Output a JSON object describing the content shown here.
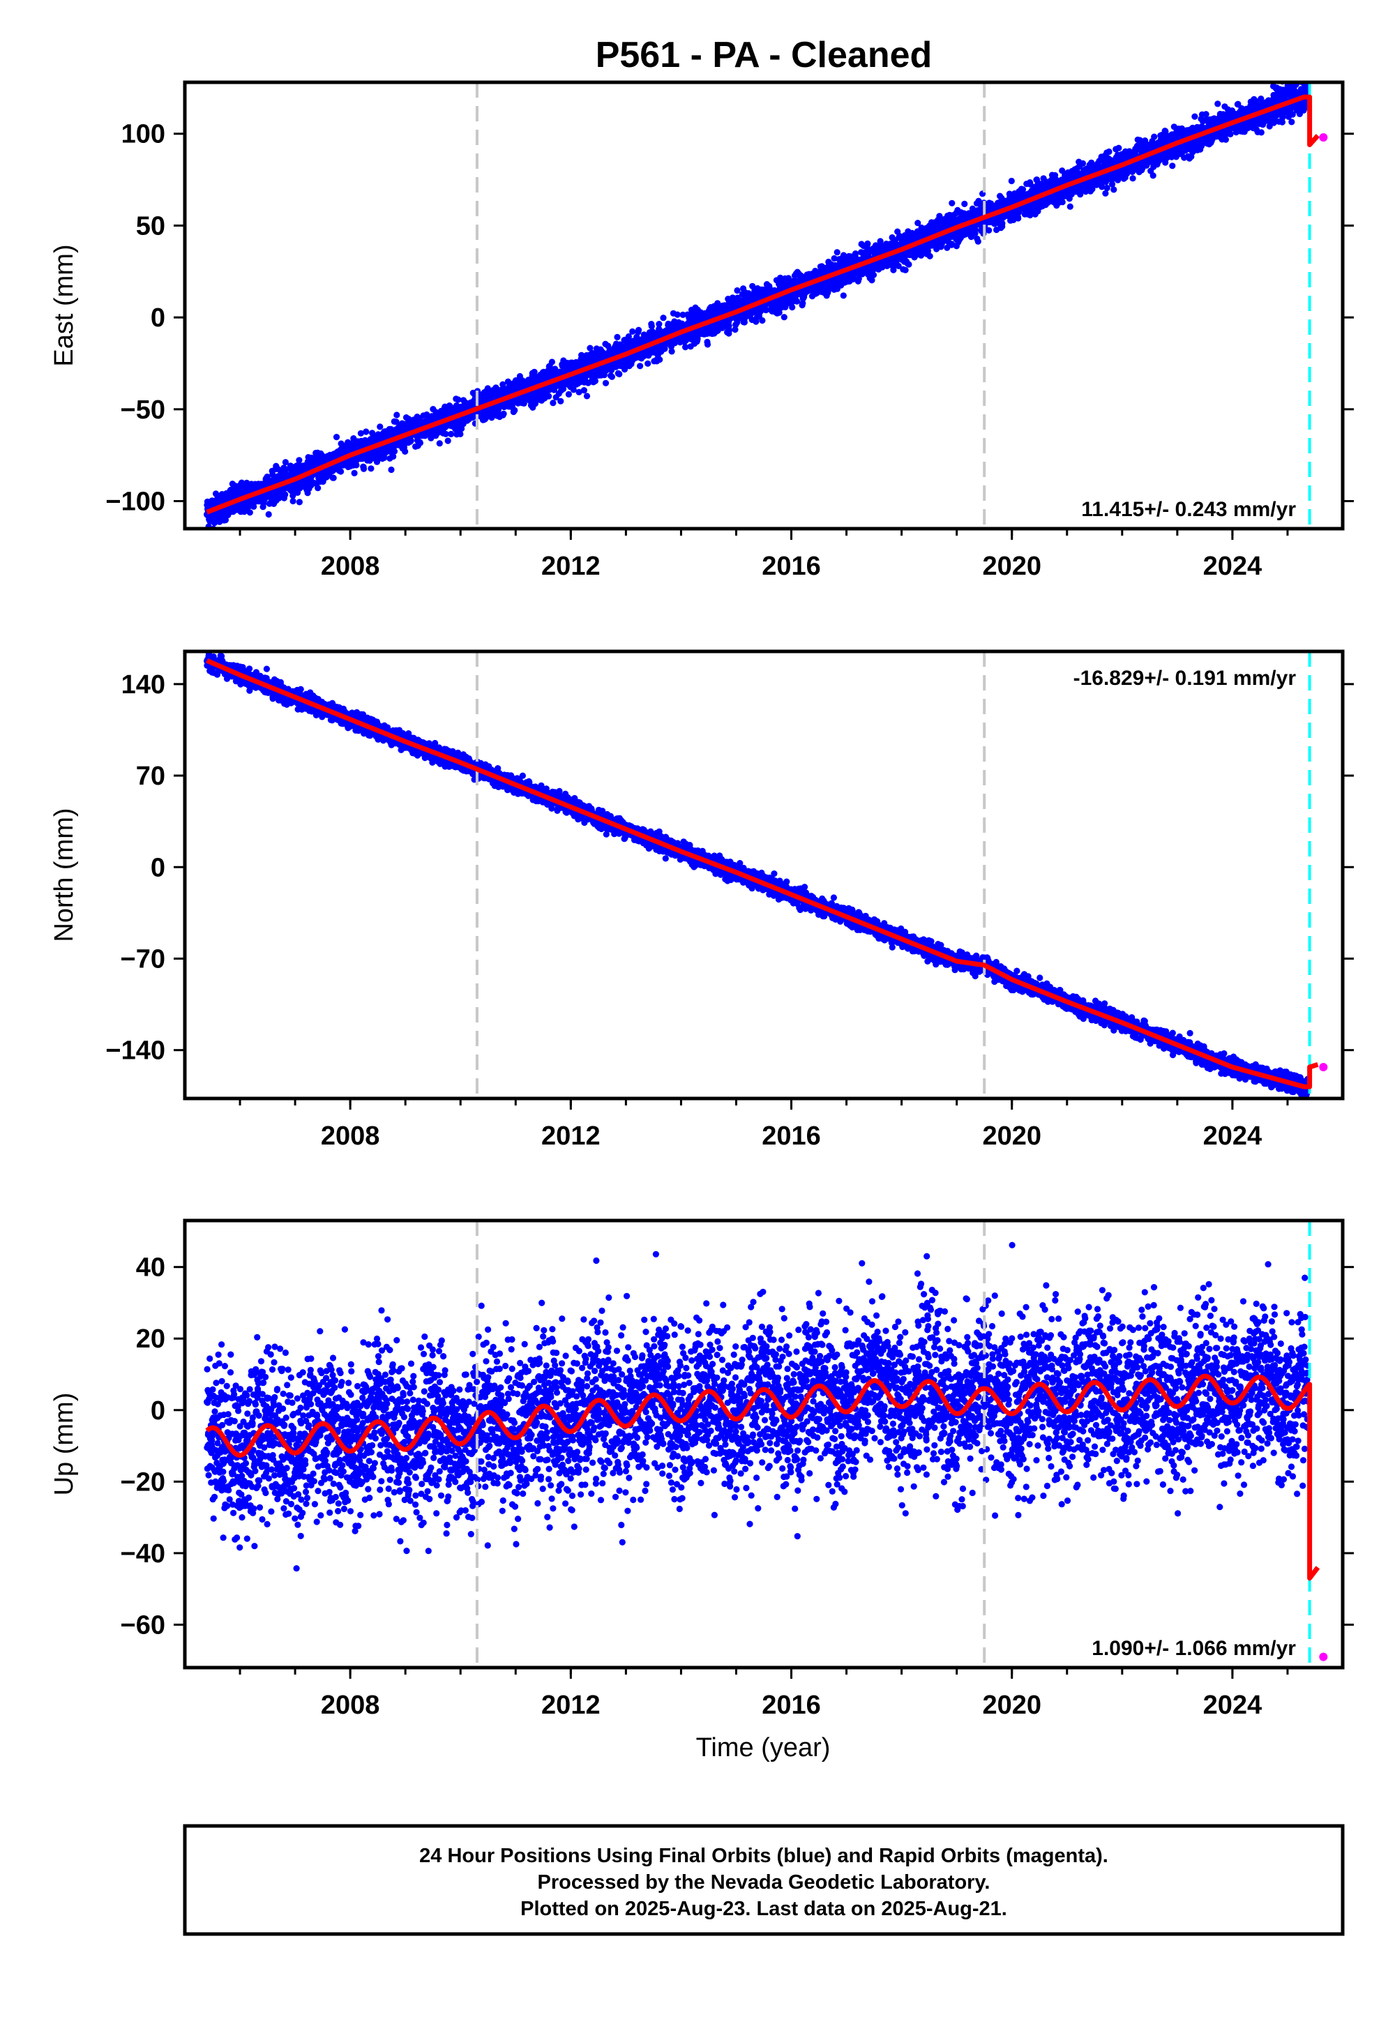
{
  "title": "P561  - PA - Cleaned",
  "x_axis_label": "Time (year)",
  "footer": {
    "line1": "24 Hour Positions Using Final Orbits (blue) and Rapid Orbits (magenta).",
    "line2": "Processed by the Nevada Geodetic Laboratory.",
    "line3": "Plotted on 2025-Aug-23. Last data on 2025-Aug-21."
  },
  "colors": {
    "final_orbits": "#0000ff",
    "rapid_orbits": "#ff00ff",
    "model": "#ff0000",
    "equipment_change": "#c8c8c8",
    "last_epoch": "#00ffff"
  },
  "chart_data": [
    {
      "type": "scatter",
      "component": "east",
      "ylabel": "East (mm)",
      "xlim": [
        2005.0,
        2026.0
      ],
      "ylim": [
        -115,
        128
      ],
      "xticks": [
        "2008",
        "2012",
        "2016",
        "2020",
        "2024"
      ],
      "yticks": [
        "100",
        "50",
        "0",
        "−50",
        "−100"
      ],
      "velocity_label": "11.415+/- 0.243 mm/yr",
      "velocity_position": "bottom-right",
      "rate_mm_per_yr": 11.415,
      "x": [
        2005.4,
        2006.0,
        2007.0,
        2008.0,
        2009.0,
        2010.0,
        2011.0,
        2012.0,
        2013.0,
        2014.0,
        2015.0,
        2016.0,
        2017.0,
        2018.0,
        2019.0,
        2020.0,
        2021.0,
        2022.0,
        2023.0,
        2024.0,
        2025.3
      ],
      "y": [
        -106,
        -99,
        -88,
        -75,
        -64,
        -53,
        -42,
        -31,
        -20,
        -8,
        3,
        15,
        26,
        37,
        49,
        60,
        72,
        83,
        95,
        106,
        120
      ],
      "final_orbit_scatter_mm": 4,
      "equipment_changes": [
        2010.3,
        2019.5
      ],
      "last_epoch": 2025.4,
      "rapid_orbits": [
        {
          "x": 2025.65,
          "y": 98
        }
      ],
      "model_after_last": [
        {
          "x": 2025.4,
          "y": 94
        },
        {
          "x": 2025.55,
          "y": 99
        }
      ]
    },
    {
      "type": "scatter",
      "component": "north",
      "ylabel": "North (mm)",
      "xlim": [
        2005.0,
        2026.0
      ],
      "ylim": [
        -177,
        165
      ],
      "xticks": [
        "2008",
        "2012",
        "2016",
        "2020",
        "2024"
      ],
      "yticks": [
        "140",
        "70",
        "0",
        "−70",
        "−140"
      ],
      "velocity_label": "-16.829+/- 0.191 mm/yr",
      "velocity_position": "top-right",
      "rate_mm_per_yr": -16.829,
      "x": [
        2005.4,
        2006.0,
        2007.0,
        2008.0,
        2009.0,
        2010.0,
        2011.0,
        2012.0,
        2013.0,
        2014.0,
        2015.0,
        2016.0,
        2017.0,
        2018.0,
        2019.0,
        2019.5,
        2020.0,
        2021.0,
        2022.0,
        2023.0,
        2024.0,
        2025.3
      ],
      "y": [
        158,
        147,
        130,
        113,
        96,
        80,
        63,
        46,
        29,
        12,
        -4,
        -21,
        -38,
        -55,
        -72,
        -75,
        -86,
        -103,
        -119,
        -136,
        -153,
        -168
      ],
      "final_orbit_scatter_mm": 3,
      "equipment_changes": [
        2010.3,
        2019.5
      ],
      "last_epoch": 2025.4,
      "rapid_orbits": [
        {
          "x": 2025.65,
          "y": -153
        }
      ],
      "model_after_last": [
        {
          "x": 2025.4,
          "y": -153
        },
        {
          "x": 2025.55,
          "y": -151
        }
      ]
    },
    {
      "type": "scatter",
      "component": "up",
      "ylabel": "Up (mm)",
      "xlim": [
        2005.0,
        2026.0
      ],
      "ylim": [
        -72,
        53
      ],
      "xticks": [
        "2008",
        "2012",
        "2016",
        "2020",
        "2024"
      ],
      "yticks": [
        "40",
        "20",
        "0",
        "−20",
        "−40",
        "−60"
      ],
      "velocity_label": "1.090+/- 1.066 mm/yr",
      "velocity_position": "bottom-right",
      "rate_mm_per_yr": 1.09,
      "x": [
        2005.4,
        2007.0,
        2009.0,
        2010.3,
        2012.0,
        2014.0,
        2016.0,
        2018.0,
        2019.5,
        2020.0,
        2022.0,
        2024.0,
        2025.3
      ],
      "y": [
        -9,
        -8,
        -7,
        -5,
        -2,
        1,
        2,
        5,
        2,
        3,
        4,
        6,
        4
      ],
      "seasonal_amplitude_mm": 4,
      "final_orbit_scatter_mm": 11,
      "equipment_changes": [
        2010.3,
        2019.5
      ],
      "last_epoch": 2025.4,
      "rapid_orbits": [
        {
          "x": 2025.65,
          "y": -69
        }
      ],
      "model_after_last": [
        {
          "x": 2025.4,
          "y": -47
        },
        {
          "x": 2025.55,
          "y": -44
        }
      ]
    }
  ]
}
